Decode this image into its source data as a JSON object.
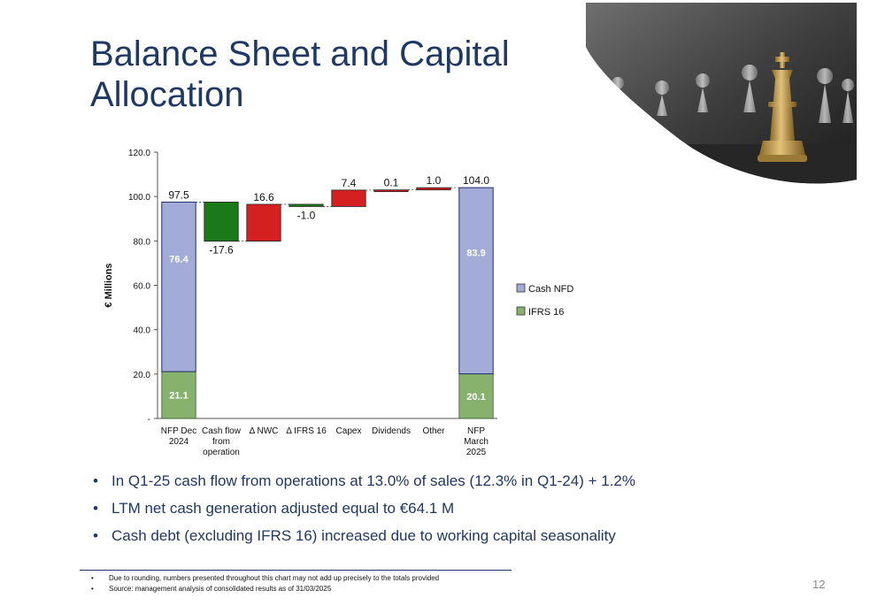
{
  "slide": {
    "title": "Balance Sheet and Capital Allocation",
    "page_number": "12"
  },
  "chart_data": {
    "type": "bar",
    "subtype": "waterfall-stacked",
    "ylabel": "€ Millions",
    "ylim": [
      0,
      120
    ],
    "yticks": [
      "-",
      "20.0",
      "40.0",
      "60.0",
      "80.0",
      "100.0",
      "120.0"
    ],
    "ytick_values": [
      0,
      20,
      40,
      60,
      80,
      100,
      120
    ],
    "grid": false,
    "legend_position": "right",
    "legend": [
      {
        "name": "Cash NFD",
        "color": "#a3acd6"
      },
      {
        "name": "IFRS 16",
        "color": "#86b26e"
      }
    ],
    "categories": [
      {
        "lines": [
          "NFP Dec",
          "2024"
        ]
      },
      {
        "lines": [
          "Cash flow",
          "from",
          "operation"
        ]
      },
      {
        "lines": [
          "Δ NWC"
        ]
      },
      {
        "lines": [
          "Δ IFRS 16"
        ]
      },
      {
        "lines": [
          "Capex"
        ]
      },
      {
        "lines": [
          "Dividends"
        ]
      },
      {
        "lines": [
          "Other"
        ]
      },
      {
        "lines": [
          "NFP",
          "March",
          "2025"
        ]
      }
    ],
    "bars": [
      {
        "kind": "total",
        "value": 97.5,
        "label": "97.5",
        "ifrs16": 21.1,
        "ifrs16_label": "21.1",
        "cash_nfd": 76.4,
        "cash_nfd_label": "76.4"
      },
      {
        "kind": "delta",
        "start": 97.5,
        "end": 79.9,
        "label": "-17.6",
        "color": "#1a7a1a"
      },
      {
        "kind": "delta",
        "start": 79.9,
        "end": 96.5,
        "label": "16.6",
        "color": "#d42020"
      },
      {
        "kind": "delta",
        "start": 96.5,
        "end": 95.5,
        "label": "-1.0",
        "color": "#1a7a1a"
      },
      {
        "kind": "delta",
        "start": 95.5,
        "end": 102.9,
        "label": "7.4",
        "color": "#d42020"
      },
      {
        "kind": "delta",
        "start": 102.9,
        "end": 103.0,
        "label": "0.1",
        "color": "#d42020"
      },
      {
        "kind": "delta",
        "start": 103.0,
        "end": 104.0,
        "label": "1.0",
        "color": "#d42020"
      },
      {
        "kind": "total",
        "value": 104.0,
        "label": "104.0",
        "ifrs16": 20.1,
        "ifrs16_label": "20.1",
        "cash_nfd": 83.9,
        "cash_nfd_label": "83.9"
      }
    ]
  },
  "bullets": [
    "In Q1-25 cash flow from operations at 13.0% of sales (12.3% in Q1-24) + 1.2%",
    "LTM net cash generation adjusted equal to €64.1  M",
    "Cash debt (excluding IFRS 16) increased due to working capital seasonality"
  ],
  "footnotes": [
    "Due to rounding, numbers presented throughout this chart may not add up precisely to the totals provided",
    "Source: management analysis of consolidated results as of 31/03/2025"
  ]
}
